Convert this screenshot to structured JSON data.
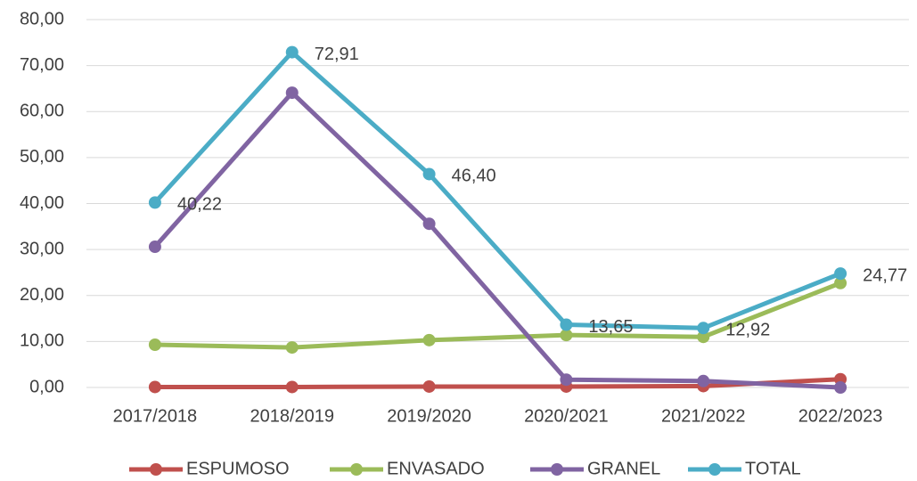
{
  "chart_data": {
    "type": "line",
    "categories": [
      "2017/2018",
      "2018/2019",
      "2019/2020",
      "2020/2021",
      "2021/2022",
      "2022/2023"
    ],
    "series": [
      {
        "name": "ESPUMOSO",
        "color": "#c0504d",
        "values": [
          0.1,
          0.1,
          0.2,
          0.2,
          0.3,
          1.8
        ]
      },
      {
        "name": "ENVASADO",
        "color": "#9bbb59",
        "values": [
          9.3,
          8.7,
          10.3,
          11.4,
          11.0,
          22.7
        ]
      },
      {
        "name": "GRANEL",
        "color": "#8064a2",
        "values": [
          30.6,
          64.1,
          35.6,
          1.7,
          1.4,
          0.0
        ]
      },
      {
        "name": "TOTAL",
        "color": "#4bacc6",
        "values": [
          40.22,
          72.91,
          46.4,
          13.65,
          12.92,
          24.77
        ],
        "value_labels": [
          "40,22",
          "72,91",
          "46,40",
          "13,65",
          "12,92",
          "24,77"
        ]
      }
    ],
    "ylim": [
      0,
      80
    ],
    "yticks": [
      {
        "value": 0,
        "label": "0,00"
      },
      {
        "value": 10,
        "label": "10,00"
      },
      {
        "value": 20,
        "label": "20,00"
      },
      {
        "value": 30,
        "label": "30,00"
      },
      {
        "value": 40,
        "label": "40,00"
      },
      {
        "value": 50,
        "label": "50,00"
      },
      {
        "value": 60,
        "label": "60,00"
      },
      {
        "value": 70,
        "label": "70,00"
      },
      {
        "value": 80,
        "label": "80,00"
      }
    ],
    "grid": true,
    "legend": "bottom"
  }
}
